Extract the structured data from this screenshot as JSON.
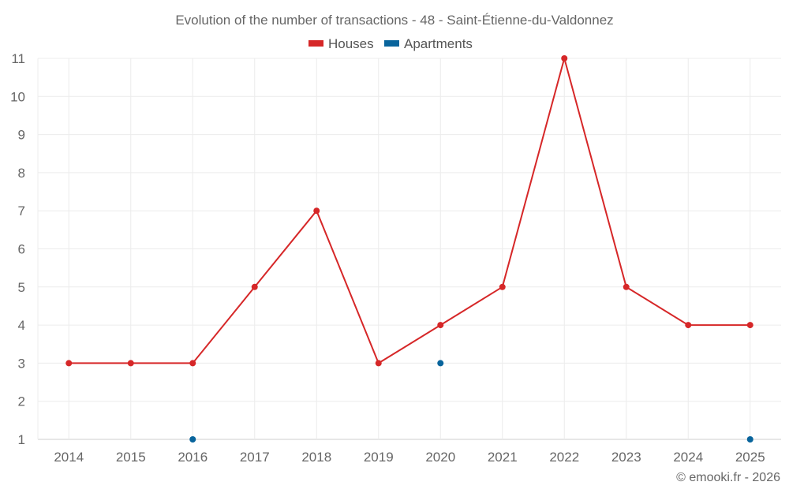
{
  "chart_data": {
    "type": "line",
    "title": "Evolution of the number of transactions - 48 - Saint-Étienne-du-Valdonnez",
    "categories": [
      "2014",
      "2015",
      "2016",
      "2017",
      "2018",
      "2019",
      "2020",
      "2021",
      "2022",
      "2023",
      "2024",
      "2025"
    ],
    "ylim": [
      1,
      11
    ],
    "yticks": [
      1,
      2,
      3,
      4,
      5,
      6,
      7,
      8,
      9,
      10,
      11
    ],
    "grid": true,
    "legend_position": "top-center",
    "series": [
      {
        "name": "Houses",
        "color": "#d62728",
        "values": [
          3,
          3,
          3,
          5,
          7,
          3,
          4,
          5,
          11,
          5,
          4,
          4
        ]
      },
      {
        "name": "Apartments",
        "color": "#08649c",
        "values": [
          null,
          null,
          1,
          null,
          null,
          null,
          3,
          null,
          null,
          null,
          null,
          1
        ]
      }
    ]
  },
  "credit": "© emooki.fr - 2026"
}
